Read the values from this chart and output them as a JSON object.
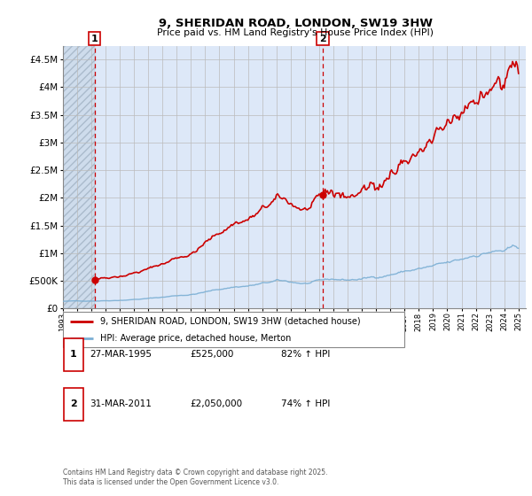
{
  "title": "9, SHERIDAN ROAD, LONDON, SW19 3HW",
  "subtitle": "Price paid vs. HM Land Registry's House Price Index (HPI)",
  "legend_line1": "9, SHERIDAN ROAD, LONDON, SW19 3HW (detached house)",
  "legend_line2": "HPI: Average price, detached house, Merton",
  "footer": "Contains HM Land Registry data © Crown copyright and database right 2025.\nThis data is licensed under the Open Government Licence v3.0.",
  "annotation1_date": "27-MAR-1995",
  "annotation1_price": "£525,000",
  "annotation1_hpi": "82% ↑ HPI",
  "annotation2_date": "31-MAR-2011",
  "annotation2_price": "£2,050,000",
  "annotation2_hpi": "74% ↑ HPI",
  "red_color": "#cc0000",
  "blue_color": "#7bafd4",
  "background_color": "#dde8f8",
  "hatch_color": "#bbccdd",
  "grid_color": "#bbbbbb",
  "ylim": [
    0,
    4750000
  ],
  "yticks": [
    0,
    500000,
    1000000,
    1500000,
    2000000,
    2500000,
    3000000,
    3500000,
    4000000,
    4500000
  ],
  "ytick_labels": [
    "£0",
    "£500K",
    "£1M",
    "£1.5M",
    "£2M",
    "£2.5M",
    "£3M",
    "£3.5M",
    "£4M",
    "£4.5M"
  ],
  "point1_x": 1995.23,
  "point1_y": 525000,
  "point2_x": 2011.25,
  "point2_y": 2050000,
  "vline1_x": 1995.23,
  "vline2_x": 2011.25,
  "xlim_left": 1993.0,
  "xlim_right": 2025.5
}
